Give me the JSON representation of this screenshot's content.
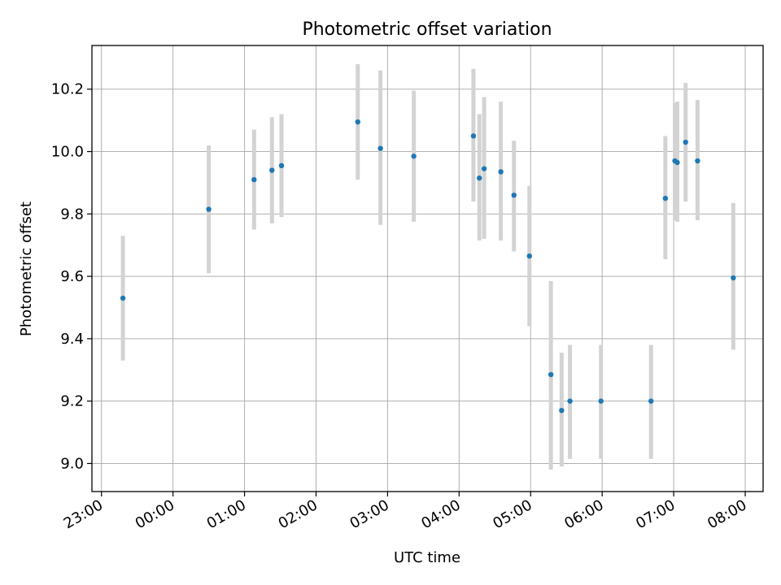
{
  "chart_data": {
    "type": "scatter",
    "title": "Photometric offset variation",
    "xlabel": "UTC time",
    "ylabel": "Photometric offset",
    "grid": true,
    "x_axis_type": "time",
    "xlim": [
      "22:52",
      "08:15"
    ],
    "ylim": [
      8.91,
      10.34
    ],
    "x_ticks": [
      "23:00",
      "00:00",
      "01:00",
      "02:00",
      "03:00",
      "04:00",
      "05:00",
      "06:00",
      "07:00",
      "08:00"
    ],
    "y_ticks": [
      "9.0",
      "9.2",
      "9.4",
      "9.6",
      "9.8",
      "10.0",
      "10.2"
    ],
    "series": [
      {
        "color": "#1f77b4",
        "error_color": "#d3d3d3",
        "points": [
          {
            "x": "23:18",
            "y": 9.53,
            "ylow": 9.33,
            "yhigh": 9.73
          },
          {
            "x": "00:30",
            "y": 9.815,
            "ylow": 9.61,
            "yhigh": 10.02
          },
          {
            "x": "01:08",
            "y": 9.91,
            "ylow": 9.75,
            "yhigh": 10.07
          },
          {
            "x": "01:23",
            "y": 9.94,
            "ylow": 9.77,
            "yhigh": 10.11
          },
          {
            "x": "01:31",
            "y": 9.955,
            "ylow": 9.79,
            "yhigh": 10.12
          },
          {
            "x": "02:35",
            "y": 10.095,
            "ylow": 9.91,
            "yhigh": 10.28
          },
          {
            "x": "02:54",
            "y": 10.01,
            "ylow": 9.765,
            "yhigh": 10.26
          },
          {
            "x": "03:22",
            "y": 9.985,
            "ylow": 9.775,
            "yhigh": 10.195
          },
          {
            "x": "04:12",
            "y": 10.05,
            "ylow": 9.84,
            "yhigh": 10.265
          },
          {
            "x": "04:17",
            "y": 9.915,
            "ylow": 9.715,
            "yhigh": 10.12
          },
          {
            "x": "04:21",
            "y": 9.945,
            "ylow": 9.72,
            "yhigh": 10.175
          },
          {
            "x": "04:35",
            "y": 9.935,
            "ylow": 9.715,
            "yhigh": 10.16
          },
          {
            "x": "04:46",
            "y": 9.86,
            "ylow": 9.68,
            "yhigh": 10.035
          },
          {
            "x": "04:59",
            "y": 9.665,
            "ylow": 9.44,
            "yhigh": 9.89
          },
          {
            "x": "05:17",
            "y": 9.285,
            "ylow": 8.98,
            "yhigh": 9.585
          },
          {
            "x": "05:26",
            "y": 9.17,
            "ylow": 8.99,
            "yhigh": 9.355
          },
          {
            "x": "05:33",
            "y": 9.2,
            "ylow": 9.015,
            "yhigh": 9.38
          },
          {
            "x": "05:59",
            "y": 9.2,
            "ylow": 9.015,
            "yhigh": 9.38
          },
          {
            "x": "06:41",
            "y": 9.2,
            "ylow": 9.015,
            "yhigh": 9.38
          },
          {
            "x": "06:53",
            "y": 9.85,
            "ylow": 9.655,
            "yhigh": 10.05
          },
          {
            "x": "07:01",
            "y": 9.97,
            "ylow": 9.78,
            "yhigh": 10.155
          },
          {
            "x": "07:03",
            "y": 9.965,
            "ylow": 9.775,
            "yhigh": 10.16
          },
          {
            "x": "07:10",
            "y": 10.03,
            "ylow": 9.84,
            "yhigh": 10.22
          },
          {
            "x": "07:20",
            "y": 9.97,
            "ylow": 9.78,
            "yhigh": 10.165
          },
          {
            "x": "07:50",
            "y": 9.595,
            "ylow": 9.365,
            "yhigh": 9.835
          }
        ]
      }
    ]
  }
}
